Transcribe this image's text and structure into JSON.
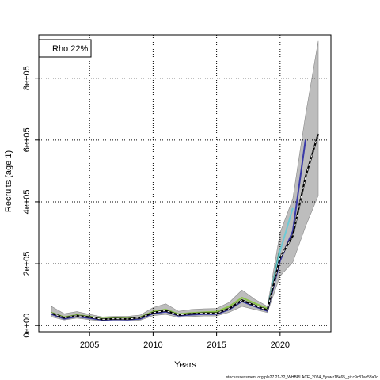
{
  "chart_data": {
    "type": "line",
    "title": "",
    "xlabel": "Years",
    "ylabel": "Recruits (age 1)",
    "xlim": [
      2001,
      2024
    ],
    "ylim": [
      -20000,
      940000
    ],
    "x_ticks": [
      2005,
      2010,
      2015,
      2020
    ],
    "x_tick_labels": [
      "2005",
      "2010",
      "2015",
      "2020"
    ],
    "y_ticks": [
      0,
      200000,
      400000,
      600000,
      800000
    ],
    "y_tick_labels": [
      "0e+00",
      "2e+05",
      "4e+05",
      "6e+05",
      "8e+05"
    ],
    "grid": true,
    "legend": {
      "placement": "top-left",
      "entries": [
        "Rho 22%"
      ]
    },
    "footer": "stockassessment.org.ple27.21-32_WHBPLACE_2024_5ysw,r18465_git:c9c81ac53a0d",
    "base": {
      "x": [
        2002,
        2003,
        2004,
        2005,
        2006,
        2007,
        2008,
        2009,
        2010,
        2011,
        2012,
        2013,
        2014,
        2015,
        2016,
        2017,
        2018,
        2019,
        2020,
        2021,
        2022,
        2023
      ],
      "estimate": [
        40000,
        25000,
        32000,
        27000,
        20000,
        22000,
        21000,
        25000,
        42000,
        48000,
        34000,
        38000,
        40000,
        40000,
        55000,
        82000,
        65000,
        50000,
        220000,
        290000,
        480000,
        620000
      ],
      "lower": [
        28000,
        18000,
        24000,
        19000,
        14000,
        15000,
        14000,
        17000,
        32000,
        36000,
        26000,
        29000,
        31000,
        31000,
        43000,
        62000,
        52000,
        42000,
        160000,
        205000,
        320000,
        420000
      ],
      "upper": [
        62000,
        38000,
        45000,
        36000,
        28000,
        30000,
        30000,
        34000,
        58000,
        70000,
        46000,
        52000,
        54000,
        55000,
        75000,
        115000,
        85000,
        62000,
        300000,
        410000,
        680000,
        920000
      ]
    },
    "series": [
      {
        "color": "#8bc34a",
        "x": [
          2002,
          2003,
          2004,
          2005,
          2006,
          2007,
          2008,
          2009,
          2010,
          2011,
          2012,
          2013,
          2014,
          2015,
          2016,
          2017,
          2018,
          2019
        ],
        "values": [
          42000,
          27000,
          34000,
          29000,
          22000,
          24000,
          23000,
          27000,
          45000,
          52000,
          37000,
          41000,
          43000,
          45000,
          62000,
          90000,
          72000,
          55000
        ]
      },
      {
        "color": "#3a9a8a",
        "x": [
          2002,
          2003,
          2004,
          2005,
          2006,
          2007,
          2008,
          2009,
          2010,
          2011,
          2012,
          2013,
          2014,
          2015,
          2016,
          2017,
          2018,
          2019,
          2020
        ],
        "values": [
          39000,
          24000,
          31000,
          26000,
          19000,
          21000,
          20000,
          24000,
          41000,
          47000,
          33000,
          37000,
          39000,
          39000,
          54000,
          80000,
          64000,
          49000,
          250000
        ]
      },
      {
        "color": "#6ecad6",
        "x": [
          2002,
          2003,
          2004,
          2005,
          2006,
          2007,
          2008,
          2009,
          2010,
          2011,
          2012,
          2013,
          2014,
          2015,
          2016,
          2017,
          2018,
          2019,
          2020,
          2021
        ],
        "values": [
          38000,
          23000,
          30000,
          25000,
          19000,
          21000,
          20000,
          23000,
          40000,
          46000,
          33000,
          36000,
          38000,
          38000,
          53000,
          79000,
          63000,
          48000,
          240000,
          380000
        ]
      },
      {
        "color": "#3a3aa8",
        "x": [
          2002,
          2003,
          2004,
          2005,
          2006,
          2007,
          2008,
          2009,
          2010,
          2011,
          2012,
          2013,
          2014,
          2015,
          2016,
          2017,
          2018,
          2019,
          2020,
          2021,
          2022
        ],
        "values": [
          37000,
          22000,
          29000,
          24000,
          18000,
          20000,
          19000,
          22000,
          39000,
          45000,
          32000,
          35000,
          37000,
          37000,
          52000,
          78000,
          62000,
          47000,
          210000,
          305000,
          600000
        ]
      }
    ]
  }
}
